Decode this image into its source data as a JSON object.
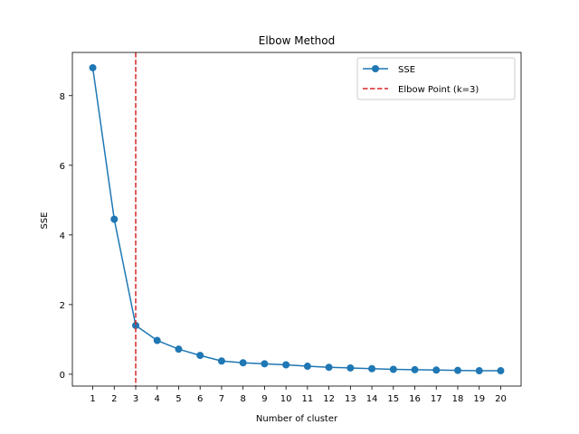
{
  "chart_data": {
    "type": "line",
    "title": "Elbow Method",
    "xlabel": "Number of cluster",
    "ylabel": "SSE",
    "x": [
      1,
      2,
      3,
      4,
      5,
      6,
      7,
      8,
      9,
      10,
      11,
      12,
      13,
      14,
      15,
      16,
      17,
      18,
      19,
      20
    ],
    "series": [
      {
        "name": "SSE",
        "color": "#1f77b4",
        "marker": "circle",
        "values": [
          8.8,
          4.45,
          1.4,
          0.97,
          0.72,
          0.54,
          0.38,
          0.33,
          0.3,
          0.27,
          0.23,
          0.2,
          0.18,
          0.16,
          0.14,
          0.13,
          0.12,
          0.11,
          0.1,
          0.1
        ]
      }
    ],
    "vline": {
      "x": 3,
      "label": "Elbow Point (k=3)",
      "color": "#d62728",
      "style": "dashed"
    },
    "xlim": [
      0.05,
      20.95
    ],
    "ylim": [
      -0.34,
      9.24
    ],
    "xticks": [
      1,
      2,
      3,
      4,
      5,
      6,
      7,
      8,
      9,
      10,
      11,
      12,
      13,
      14,
      15,
      16,
      17,
      18,
      19,
      20
    ],
    "yticks": [
      0,
      2,
      4,
      6,
      8
    ],
    "grid": false,
    "legend_position": "top-right"
  }
}
